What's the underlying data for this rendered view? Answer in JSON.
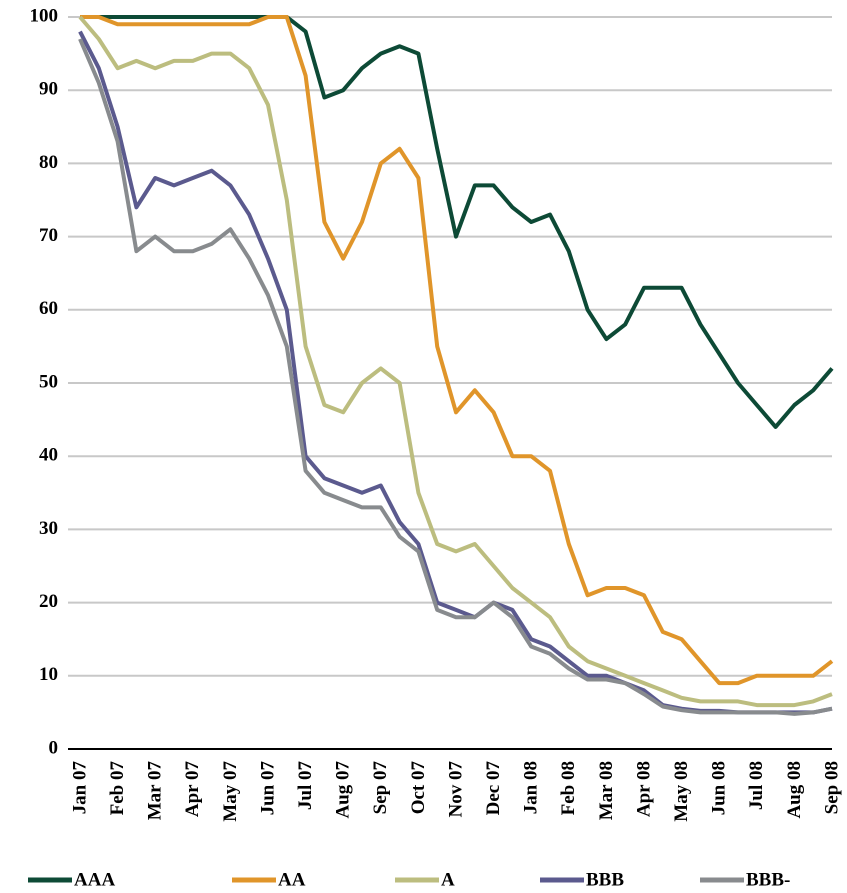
{
  "chart_data": {
    "type": "line",
    "categories": [
      "Jan 07",
      null,
      "Feb 07",
      null,
      "Mar 07",
      null,
      "Apr 07",
      null,
      "May 07",
      null,
      "Jun 07",
      null,
      "Jul 07",
      null,
      "Aug 07",
      null,
      "Sep 07",
      null,
      "Oct 07",
      null,
      "Nov 07",
      null,
      "Dec 07",
      null,
      "Jan 08",
      null,
      "Feb 08",
      null,
      "Mar 08",
      null,
      "Apr 08",
      null,
      "May 08",
      null,
      "Jun 08",
      null,
      "Jul 08",
      null,
      "Aug 08",
      null,
      "Sep 08"
    ],
    "series": [
      {
        "name": "AAA",
        "color": "#0d4a36",
        "values": [
          100,
          100,
          100,
          100,
          100,
          100,
          100,
          100,
          100,
          100,
          100,
          100,
          98,
          89,
          90,
          93,
          95,
          96,
          95,
          82,
          70,
          77,
          77,
          74,
          72,
          73,
          68,
          60,
          56,
          58,
          63,
          63,
          63,
          58,
          54,
          50,
          47,
          44,
          47,
          49,
          52
        ]
      },
      {
        "name": "AA",
        "color": "#e0952a",
        "values": [
          100,
          100,
          99,
          99,
          99,
          99,
          99,
          99,
          99,
          99,
          100,
          100,
          92,
          72,
          67,
          72,
          80,
          82,
          78,
          55,
          46,
          49,
          46,
          40,
          40,
          38,
          28,
          21,
          22,
          22,
          21,
          16,
          15,
          12,
          9,
          9,
          10,
          10,
          10,
          10,
          12
        ]
      },
      {
        "name": "A",
        "color": "#bcbd7f",
        "values": [
          100,
          97,
          93,
          94,
          93,
          94,
          94,
          95,
          95,
          93,
          88,
          75,
          55,
          47,
          46,
          50,
          52,
          50,
          35,
          28,
          27,
          28,
          25,
          22,
          20,
          18,
          14,
          12,
          11,
          10,
          9,
          8,
          7,
          6.5,
          6.5,
          6.5,
          6,
          6,
          6,
          6.5,
          7.5
        ]
      },
      {
        "name": "BBB",
        "color": "#5b5a8e",
        "values": [
          98,
          93,
          85,
          74,
          78,
          77,
          78,
          79,
          77,
          73,
          67,
          60,
          40,
          37,
          36,
          35,
          36,
          31,
          28,
          20,
          19,
          18,
          20,
          19,
          15,
          14,
          12,
          10,
          10,
          9,
          8,
          6,
          5.5,
          5.2,
          5.2,
          5,
          5,
          5,
          5,
          5,
          5.5
        ]
      },
      {
        "name": "BBB-",
        "color": "#888b8e",
        "values": [
          97,
          91,
          83,
          68,
          70,
          68,
          68,
          69,
          71,
          67,
          62,
          55,
          38,
          35,
          34,
          33,
          33,
          29,
          27,
          19,
          18,
          18,
          20,
          18,
          14,
          13,
          11,
          9.5,
          9.5,
          9,
          7.5,
          5.8,
          5.3,
          5,
          5,
          5,
          5,
          5,
          4.8,
          5,
          5.5
        ]
      }
    ],
    "ylim": [
      0,
      100
    ],
    "yticks": [
      0,
      10,
      20,
      30,
      40,
      50,
      60,
      70,
      80,
      90,
      100
    ],
    "grid": true,
    "legend": "bottom"
  }
}
